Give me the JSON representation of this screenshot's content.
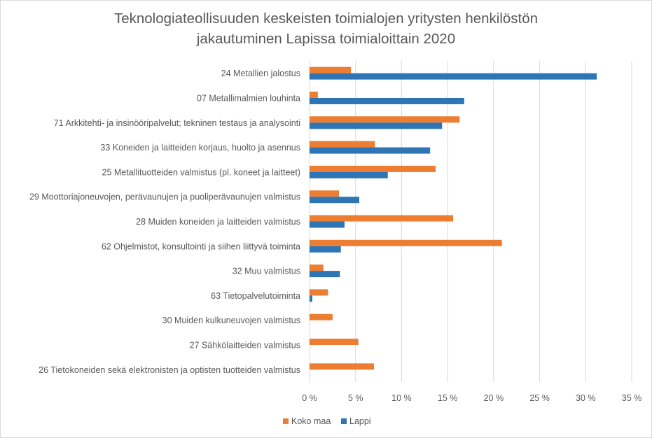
{
  "chart_data": {
    "type": "bar",
    "orientation": "horizontal",
    "title_line1": "Teknologiateollisuuden keskeisten toimialojen yritysten henkilöstön",
    "title_line2": "jakautuminen Lapissa toimialoittain 2020",
    "categories": [
      "24 Metallien jalostus",
      "07 Metallimalmien louhinta",
      "71 Arkkitehti- ja insinööripalvelut; tekninen testaus ja analysointi",
      "33 Koneiden ja laitteiden korjaus, huolto ja asennus",
      "25 Metallituotteiden valmistus (pl. koneet ja laitteet)",
      "29 Moottoriajoneuvojen, perävaunujen ja puoliperävaunujen valmistus",
      "28 Muiden koneiden ja laitteiden valmistus",
      "62 Ohjelmistot, konsultointi ja siihen liittyvä toiminta",
      "32 Muu valmistus",
      "63 Tietopalvelutoiminta",
      "30 Muiden kulkuneuvojen valmistus",
      "27 Sähkölaitteiden valmistus",
      "26 Tietokoneiden sekä elektronisten ja optisten tuotteiden valmistus"
    ],
    "series": [
      {
        "name": "Koko maa",
        "color": "#ed7d31",
        "values": [
          4.5,
          0.9,
          16.3,
          7.1,
          13.7,
          3.2,
          15.6,
          20.9,
          1.5,
          2.0,
          2.5,
          5.3,
          7.0
        ]
      },
      {
        "name": "Lappi",
        "color": "#2e75b6",
        "values": [
          31.2,
          16.8,
          14.4,
          13.1,
          8.5,
          5.4,
          3.8,
          3.4,
          3.3,
          0.3,
          0.0,
          0.0,
          0.0
        ]
      }
    ],
    "xlim": [
      0,
      35
    ],
    "x_ticks": [
      "0 %",
      "5 %",
      "10 %",
      "15 %",
      "20 %",
      "25 %",
      "30 %",
      "35 %"
    ],
    "grid": true,
    "legend_position": "bottom"
  }
}
